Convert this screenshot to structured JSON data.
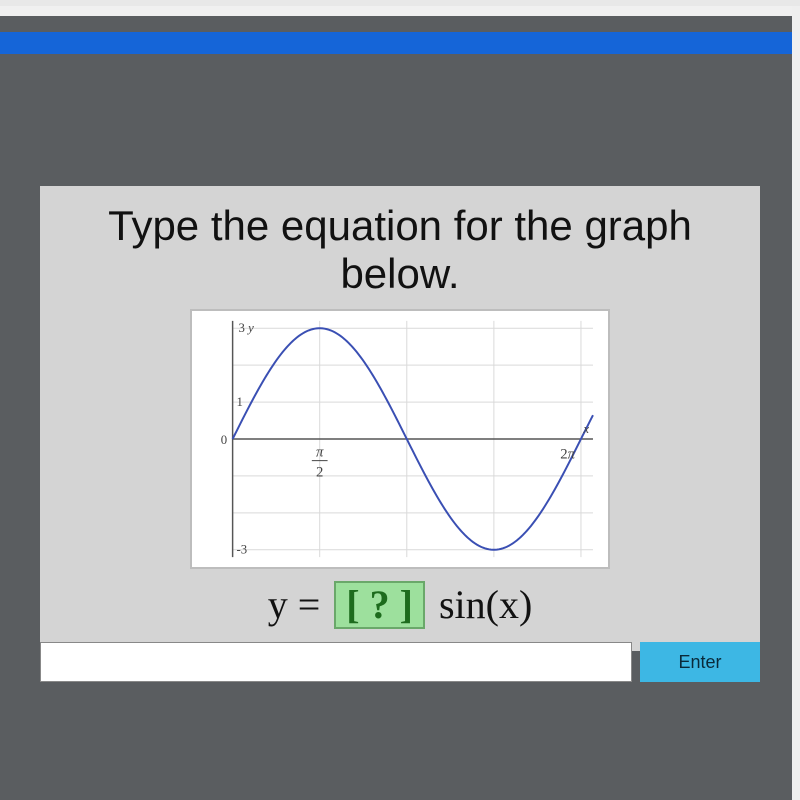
{
  "page": {
    "background_color": "#5a5d60",
    "blue_bar_color": "#1565d8"
  },
  "card": {
    "background_color": "#d4d4d4",
    "prompt_line1": "Type the equation for the graph",
    "prompt_line2": "below."
  },
  "graph": {
    "type": "line",
    "background_color": "#ffffff",
    "border_color": "#bdbdbd",
    "grid_color": "#d9d9d9",
    "axis_color": "#555555",
    "curve_color": "#3a4fb3",
    "curve_width": 2,
    "xlim": [
      0,
      6.5
    ],
    "ylim": [
      -3.2,
      3.2
    ],
    "x_grid": [
      1.5708,
      3.1416,
      4.7124,
      6.2832
    ],
    "y_grid": [
      -3,
      -2,
      -1,
      1,
      2,
      3
    ],
    "y_axis_label": "y",
    "y_axis_label_value": "3",
    "y_tick_label_1": "1",
    "y_tick_label_neg3": "-3",
    "x_axis_label": "x",
    "x_origin_label": "0",
    "x_tick_pi2_top": "π",
    "x_tick_pi2_bottom": "2",
    "x_tick_2pi": "2π",
    "amplitude": 3,
    "period": 6.2832,
    "label_fontsize": 13,
    "label_color": "#444"
  },
  "equation": {
    "prefix": "y = ",
    "blank": "?",
    "suffix": " sin(x)",
    "blank_bg": "#9de09d",
    "blank_border": "#6aa86a"
  },
  "input": {
    "value": "",
    "placeholder": ""
  },
  "enter_button": {
    "label": "Enter",
    "bg": "#3db7e4"
  }
}
